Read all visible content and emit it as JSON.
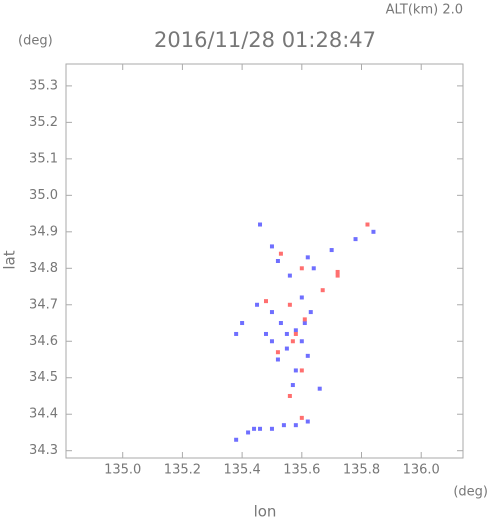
{
  "chart_data": {
    "type": "scatter",
    "title": "2016/11/28 01:28:47",
    "subtitle": "ALT(km) 2.0",
    "y_unit": "(deg)",
    "x_unit": "(deg)",
    "x_label": "lon",
    "y_label": "lat",
    "xlim": [
      134.81,
      136.14
    ],
    "ylim": [
      34.28,
      35.36
    ],
    "xticks": [
      {
        "value": 135,
        "label": "135.0"
      },
      135.2,
      135.4,
      135.6,
      135.8,
      {
        "value": 136,
        "label": "136.0"
      }
    ],
    "yticks": [
      34.3,
      34.4,
      34.5,
      34.6,
      34.7,
      34.8,
      34.9,
      {
        "value": 35,
        "label": "35.0"
      },
      35.1,
      35.2,
      35.3
    ],
    "series": [
      {
        "color": "#6f6fff",
        "x": [
          135.46,
          135.5,
          135.52,
          135.56,
          135.64,
          135.7,
          135.78,
          135.84,
          135.62,
          135.45,
          135.5,
          135.53,
          135.58,
          135.6,
          135.55,
          135.62,
          135.58,
          135.52,
          135.48,
          135.4,
          135.38,
          135.63,
          135.6,
          135.57,
          135.66,
          135.55,
          135.61,
          135.5,
          135.38,
          135.42,
          135.46,
          135.5,
          135.54,
          135.58,
          135.62,
          135.44
        ],
        "values": [
          34.92,
          34.86,
          34.82,
          34.78,
          34.8,
          34.85,
          34.88,
          34.9,
          34.83,
          34.7,
          34.68,
          34.65,
          34.63,
          34.6,
          34.58,
          34.56,
          34.52,
          34.55,
          34.62,
          34.65,
          34.62,
          34.68,
          34.72,
          34.48,
          34.47,
          34.62,
          34.65,
          34.6,
          34.33,
          34.35,
          34.36,
          34.36,
          34.37,
          34.37,
          34.38,
          34.36
        ]
      },
      {
        "color": "#ff6f6f",
        "x": [
          135.6,
          135.53,
          135.82,
          135.67,
          135.72,
          135.56,
          135.61,
          135.57,
          135.52,
          135.6,
          135.56,
          135.48,
          135.58,
          135.6,
          135.72
        ],
        "values": [
          34.8,
          34.84,
          34.92,
          34.74,
          34.78,
          34.7,
          34.66,
          34.6,
          34.57,
          34.52,
          34.45,
          34.71,
          34.62,
          34.39,
          34.79
        ]
      }
    ]
  }
}
